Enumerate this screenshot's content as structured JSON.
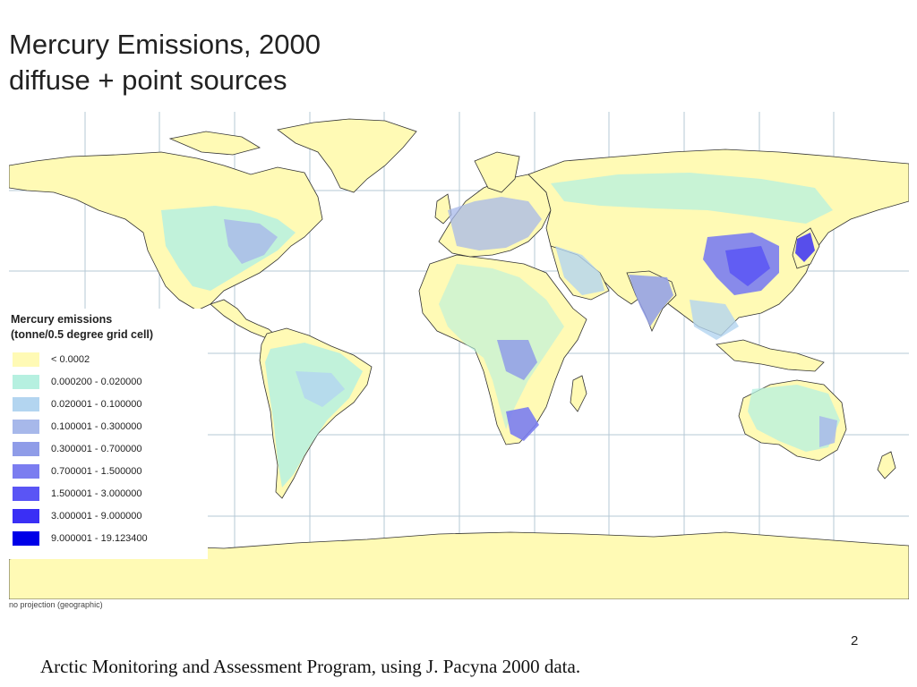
{
  "slide": {
    "title_line1": "Mercury Emissions, 2000",
    "title_line2": "diffuse + point sources",
    "projection_note": "no projection (geographic)",
    "page_number": "2",
    "source": "Arctic Monitoring and Assessment Program, using J. Pacyna 2000 data."
  },
  "map": {
    "projection": "geographic",
    "background_color": "#ffffff",
    "land_color": "#fffab5",
    "border_color": "#333333",
    "graticule_color": "#b5c8d6",
    "graticule_spacing_degrees": 30
  },
  "legend": {
    "title_line1": "Mercury emissions",
    "title_line2": "(tonne/0.5 degree grid cell)",
    "items": [
      {
        "label": "< 0.0002",
        "color": "#fffab5"
      },
      {
        "label": "0.000200 - 0.020000",
        "color": "#b6f0e0"
      },
      {
        "label": "0.020001 - 0.100000",
        "color": "#b3d5f0"
      },
      {
        "label": "0.100001 - 0.300000",
        "color": "#a7b8ea"
      },
      {
        "label": "0.300001 - 0.700000",
        "color": "#8f9ce8"
      },
      {
        "label": "0.700001 - 1.500000",
        "color": "#7b7df0"
      },
      {
        "label": "1.500001 - 3.000000",
        "color": "#5a55f5"
      },
      {
        "label": "3.000001 - 9.000000",
        "color": "#3a2ff5"
      },
      {
        "label": "9.000001 - 19.123400",
        "color": "#0000e8"
      }
    ]
  }
}
